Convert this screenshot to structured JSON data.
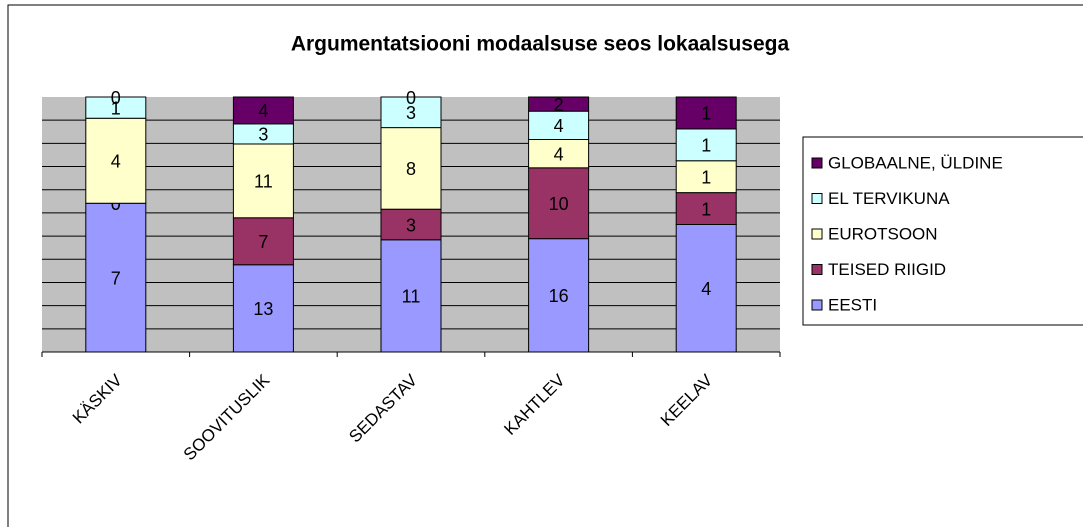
{
  "chart_data": {
    "type": "bar",
    "stacking": "percent",
    "title": "Argumentatsiooni modaalsuse seos lokaalsusega",
    "categories": [
      "KÄSKIV",
      "SOOVITUSLIK",
      "SEDASTAV",
      "KAHTLEV",
      "KEELAV"
    ],
    "series": [
      {
        "name": "EESTI",
        "color": "#9999ff",
        "values": [
          7,
          13,
          11,
          16,
          4
        ]
      },
      {
        "name": "TEISED RIIGID",
        "color": "#993366",
        "values": [
          0,
          7,
          3,
          10,
          1
        ]
      },
      {
        "name": "EUROTSOON",
        "color": "#ffffcc",
        "values": [
          4,
          11,
          8,
          4,
          1
        ]
      },
      {
        "name": "EL TERVIKUNA",
        "color": "#ccffff",
        "values": [
          1,
          3,
          3,
          4,
          1
        ]
      },
      {
        "name": "GLOBAALNE, ÜLDINE",
        "color": "#660066",
        "values": [
          0,
          4,
          0,
          2,
          1
        ]
      }
    ],
    "grid": true,
    "legend": "right"
  }
}
